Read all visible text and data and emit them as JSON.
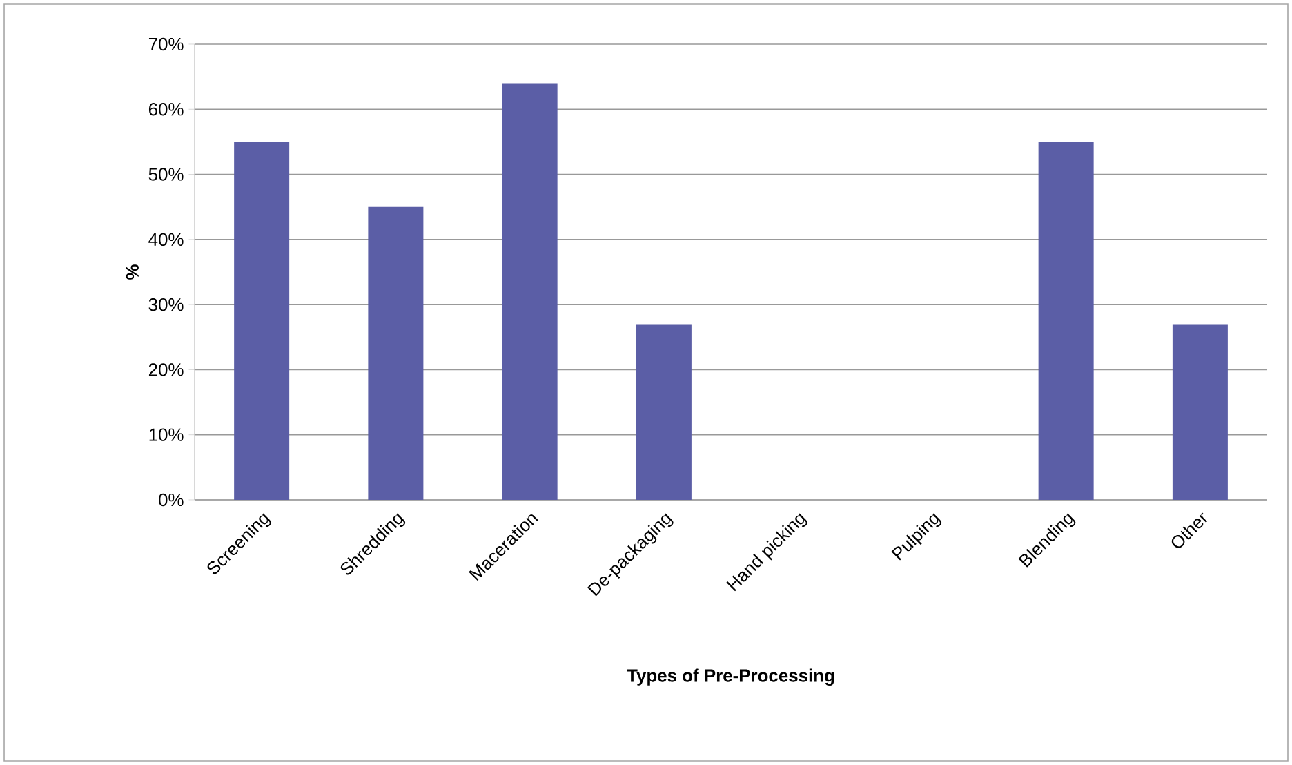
{
  "chart_data": {
    "type": "bar",
    "xlabel": "Types of Pre-Processing",
    "ylabel": "%",
    "categories": [
      "Screening",
      "Shredding",
      "Maceration",
      "De-packaging",
      "Hand picking",
      "Pulping",
      "Blending",
      "Other"
    ],
    "values": [
      55,
      45,
      64,
      27,
      0,
      0,
      55,
      27
    ],
    "color": "#5b5ea6",
    "ylim": [
      0,
      70
    ],
    "yticks": [
      {
        "value": 0,
        "label": "0%"
      },
      {
        "value": 10,
        "label": "10%"
      },
      {
        "value": 20,
        "label": "20%"
      },
      {
        "value": 30,
        "label": "30%"
      },
      {
        "value": 40,
        "label": "40%"
      },
      {
        "value": 50,
        "label": "50%"
      },
      {
        "value": 60,
        "label": "60%"
      },
      {
        "value": 70,
        "label": "70%"
      }
    ],
    "grid": "y"
  }
}
